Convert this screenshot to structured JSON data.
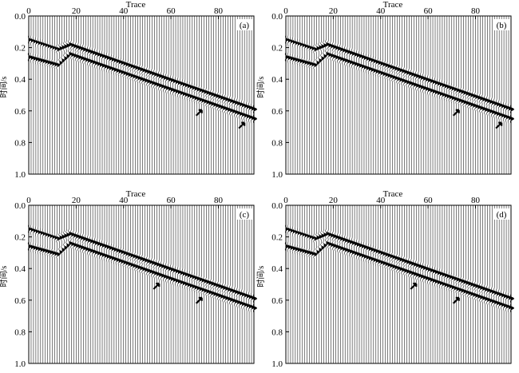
{
  "chart_data": [
    {
      "type": "seismic-wiggle",
      "panel_label": "(a)",
      "xlabel": "Trace",
      "ylabel": "时间/s",
      "xticks": [
        "0",
        "20",
        "40",
        "60",
        "80"
      ],
      "yticks": [
        "0.0",
        "0.2",
        "0.4",
        "0.6",
        "0.8",
        "1.0"
      ],
      "xlim": [
        0,
        95
      ],
      "ylim": [
        0.0,
        1.0
      ],
      "trace_count": 96,
      "events": [
        {
          "x": [
            0,
            12,
            17,
            95
          ],
          "t": [
            0.15,
            0.21,
            0.18,
            0.59
          ]
        },
        {
          "x": [
            0,
            12,
            17,
            95
          ],
          "t": [
            0.26,
            0.31,
            0.24,
            0.65
          ]
        }
      ],
      "arrows": [
        {
          "x": 72,
          "t": 0.61
        },
        {
          "x": 90,
          "t": 0.69
        }
      ]
    },
    {
      "type": "seismic-wiggle",
      "panel_label": "(b)",
      "xlabel": "Trace",
      "ylabel": "时间/s",
      "xticks": [
        "0",
        "20",
        "40",
        "60",
        "80"
      ],
      "yticks": [
        "0.0",
        "0.2",
        "0.4",
        "0.6",
        "0.8",
        "1.0"
      ],
      "xlim": [
        0,
        95
      ],
      "ylim": [
        0.0,
        1.0
      ],
      "trace_count": 96,
      "events": [
        {
          "x": [
            0,
            12,
            17,
            95
          ],
          "t": [
            0.15,
            0.21,
            0.18,
            0.59
          ]
        },
        {
          "x": [
            0,
            12,
            17,
            95
          ],
          "t": [
            0.26,
            0.31,
            0.24,
            0.65
          ]
        }
      ],
      "arrows": [
        {
          "x": 72,
          "t": 0.61
        },
        {
          "x": 90,
          "t": 0.69
        }
      ]
    },
    {
      "type": "seismic-wiggle",
      "panel_label": "(c)",
      "xlabel": "Trace",
      "ylabel": "时间/s",
      "xticks": [
        "0",
        "20",
        "40",
        "60",
        "80"
      ],
      "yticks": [
        "0.0",
        "0.2",
        "0.4",
        "0.6",
        "0.8",
        "1.0"
      ],
      "xlim": [
        0,
        95
      ],
      "ylim": [
        0.0,
        1.0
      ],
      "trace_count": 96,
      "events": [
        {
          "x": [
            0,
            12,
            17,
            95
          ],
          "t": [
            0.15,
            0.21,
            0.18,
            0.59
          ]
        },
        {
          "x": [
            0,
            12,
            17,
            95
          ],
          "t": [
            0.26,
            0.31,
            0.24,
            0.65
          ]
        }
      ],
      "arrows": [
        {
          "x": 54,
          "t": 0.51
        },
        {
          "x": 72,
          "t": 0.6
        }
      ]
    },
    {
      "type": "seismic-wiggle",
      "panel_label": "(d)",
      "xlabel": "Trace",
      "ylabel": "时间/s",
      "xticks": [
        "0",
        "20",
        "40",
        "60",
        "80"
      ],
      "yticks": [
        "0.0",
        "0.2",
        "0.4",
        "0.6",
        "0.8",
        "1.0"
      ],
      "xlim": [
        0,
        95
      ],
      "ylim": [
        0.0,
        1.0
      ],
      "trace_count": 96,
      "events": [
        {
          "x": [
            0,
            12,
            17,
            95
          ],
          "t": [
            0.15,
            0.21,
            0.18,
            0.59
          ]
        },
        {
          "x": [
            0,
            12,
            17,
            95
          ],
          "t": [
            0.26,
            0.31,
            0.24,
            0.65
          ]
        }
      ],
      "arrows": [
        {
          "x": 54,
          "t": 0.51
        },
        {
          "x": 72,
          "t": 0.6
        }
      ]
    }
  ]
}
